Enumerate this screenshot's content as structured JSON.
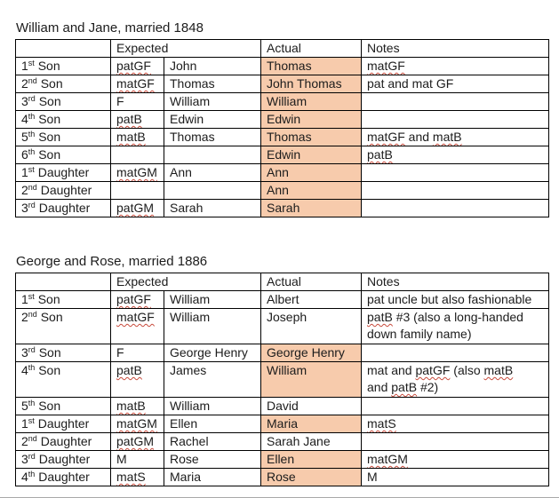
{
  "colors": {
    "actual_highlight": "#f7cbac",
    "spellcheck_squiggle": "#c84b3c",
    "table_border": "#000000",
    "text": "#1c1c1c"
  },
  "tables": [
    {
      "title": "William and Jane, married 1848",
      "headers": {
        "corner": "",
        "expected": "Expected",
        "actual": "Actual",
        "notes": "Notes"
      },
      "rows": [
        {
          "ordinal": "1",
          "ordinal_suffix": "st",
          "label": "Son",
          "expected_code": "patGF",
          "code_misspelled": true,
          "expected_name": "John",
          "actual": "Thomas",
          "actual_highlighted": true,
          "tall": false,
          "notes": [
            {
              "text": "matGF",
              "misspelled": true
            }
          ]
        },
        {
          "ordinal": "2",
          "ordinal_suffix": "nd",
          "label": "Son",
          "expected_code": "matGF",
          "code_misspelled": true,
          "expected_name": "Thomas",
          "actual": "John Thomas",
          "actual_highlighted": true,
          "tall": false,
          "notes": [
            {
              "text": "pat and mat GF",
              "misspelled": false
            }
          ]
        },
        {
          "ordinal": "3",
          "ordinal_suffix": "rd",
          "label": "Son",
          "expected_code": "F",
          "code_misspelled": false,
          "expected_name": "William",
          "actual": "William",
          "actual_highlighted": true,
          "tall": false,
          "notes": []
        },
        {
          "ordinal": "4",
          "ordinal_suffix": "th",
          "label": "Son",
          "expected_code": "patB",
          "code_misspelled": true,
          "expected_name": "Edwin",
          "actual": "Edwin",
          "actual_highlighted": true,
          "tall": false,
          "notes": []
        },
        {
          "ordinal": "5",
          "ordinal_suffix": "th",
          "label": "Son",
          "expected_code": "matB",
          "code_misspelled": true,
          "expected_name": "Thomas",
          "actual": "Thomas",
          "actual_highlighted": true,
          "tall": false,
          "notes": [
            {
              "text": "matGF",
              "misspelled": true
            },
            {
              "text": " and ",
              "misspelled": false
            },
            {
              "text": "matB",
              "misspelled": true
            }
          ]
        },
        {
          "ordinal": "6",
          "ordinal_suffix": "th",
          "label": "Son",
          "expected_code": "",
          "code_misspelled": false,
          "expected_name": "",
          "actual": "Edwin",
          "actual_highlighted": true,
          "tall": false,
          "notes": [
            {
              "text": "patB",
              "misspelled": true
            }
          ]
        },
        {
          "ordinal": "1",
          "ordinal_suffix": "st",
          "label": "Daughter",
          "expected_code": "matGM",
          "code_misspelled": true,
          "expected_name": "Ann",
          "actual": "Ann",
          "actual_highlighted": true,
          "tall": false,
          "notes": []
        },
        {
          "ordinal": "2",
          "ordinal_suffix": "nd",
          "label": "Daughter",
          "expected_code": "",
          "code_misspelled": false,
          "expected_name": "",
          "actual": "Ann",
          "actual_highlighted": true,
          "tall": false,
          "notes": []
        },
        {
          "ordinal": "3",
          "ordinal_suffix": "rd",
          "label": "Daughter",
          "expected_code": "patGM",
          "code_misspelled": true,
          "expected_name": "Sarah",
          "actual": "Sarah",
          "actual_highlighted": true,
          "tall": false,
          "notes": []
        }
      ]
    },
    {
      "title": "George and Rose, married 1886",
      "headers": {
        "corner": "",
        "expected": "Expected",
        "actual": "Actual",
        "notes": "Notes"
      },
      "rows": [
        {
          "ordinal": "1",
          "ordinal_suffix": "st",
          "label": "Son",
          "expected_code": "patGF",
          "code_misspelled": true,
          "expected_name": "William",
          "actual": "Albert",
          "actual_highlighted": false,
          "tall": false,
          "notes": [
            {
              "text": "pat uncle but also fashionable",
              "misspelled": false
            }
          ]
        },
        {
          "ordinal": "2",
          "ordinal_suffix": "nd",
          "label": "Son",
          "expected_code": "matGF",
          "code_misspelled": true,
          "expected_name": "William",
          "actual": "Joseph",
          "actual_highlighted": false,
          "tall": true,
          "notes": [
            {
              "text": "patB",
              "misspelled": true
            },
            {
              "text": " #3 (also a long-handed",
              "misspelled": false
            },
            {
              "text": "down family name)",
              "misspelled": false,
              "break_before": true
            }
          ]
        },
        {
          "ordinal": "3",
          "ordinal_suffix": "rd",
          "label": "Son",
          "expected_code": "F",
          "code_misspelled": false,
          "expected_name": "George Henry",
          "actual": "George Henry",
          "actual_highlighted": true,
          "tall": false,
          "notes": []
        },
        {
          "ordinal": "4",
          "ordinal_suffix": "th",
          "label": "Son",
          "expected_code": "patB",
          "code_misspelled": true,
          "expected_name": "James",
          "actual": "William",
          "actual_highlighted": true,
          "tall": true,
          "notes": [
            {
              "text": "mat and ",
              "misspelled": false
            },
            {
              "text": "patGF",
              "misspelled": true
            },
            {
              "text": " (also ",
              "misspelled": false
            },
            {
              "text": "matB",
              "misspelled": true
            },
            {
              "text": "and ",
              "misspelled": false,
              "break_before": true
            },
            {
              "text": "patB",
              "misspelled": true
            },
            {
              "text": " #2)",
              "misspelled": false
            }
          ]
        },
        {
          "ordinal": "5",
          "ordinal_suffix": "th",
          "label": "Son",
          "expected_code": "matB",
          "code_misspelled": true,
          "expected_name": "William",
          "actual": "David",
          "actual_highlighted": false,
          "tall": false,
          "notes": []
        },
        {
          "ordinal": "1",
          "ordinal_suffix": "st",
          "label": "Daughter",
          "expected_code": "matGM",
          "code_misspelled": true,
          "expected_name": "Ellen",
          "actual": "Maria",
          "actual_highlighted": true,
          "tall": false,
          "notes": [
            {
              "text": "matS",
              "misspelled": true
            }
          ]
        },
        {
          "ordinal": "2",
          "ordinal_suffix": "nd",
          "label": "Daughter",
          "expected_code": "patGM",
          "code_misspelled": true,
          "expected_name": "Rachel",
          "actual": "Sarah Jane",
          "actual_highlighted": false,
          "tall": false,
          "notes": []
        },
        {
          "ordinal": "3",
          "ordinal_suffix": "rd",
          "label": "Daughter",
          "expected_code": "M",
          "code_misspelled": false,
          "expected_name": "Rose",
          "actual": "Ellen",
          "actual_highlighted": true,
          "tall": false,
          "notes": [
            {
              "text": "matGM",
              "misspelled": true
            }
          ]
        },
        {
          "ordinal": "4",
          "ordinal_suffix": "th",
          "label": "Daughter",
          "expected_code": "matS",
          "code_misspelled": true,
          "expected_name": "Maria",
          "actual": "Rose",
          "actual_highlighted": true,
          "tall": false,
          "notes": [
            {
              "text": "M",
              "misspelled": false
            }
          ]
        }
      ]
    }
  ]
}
